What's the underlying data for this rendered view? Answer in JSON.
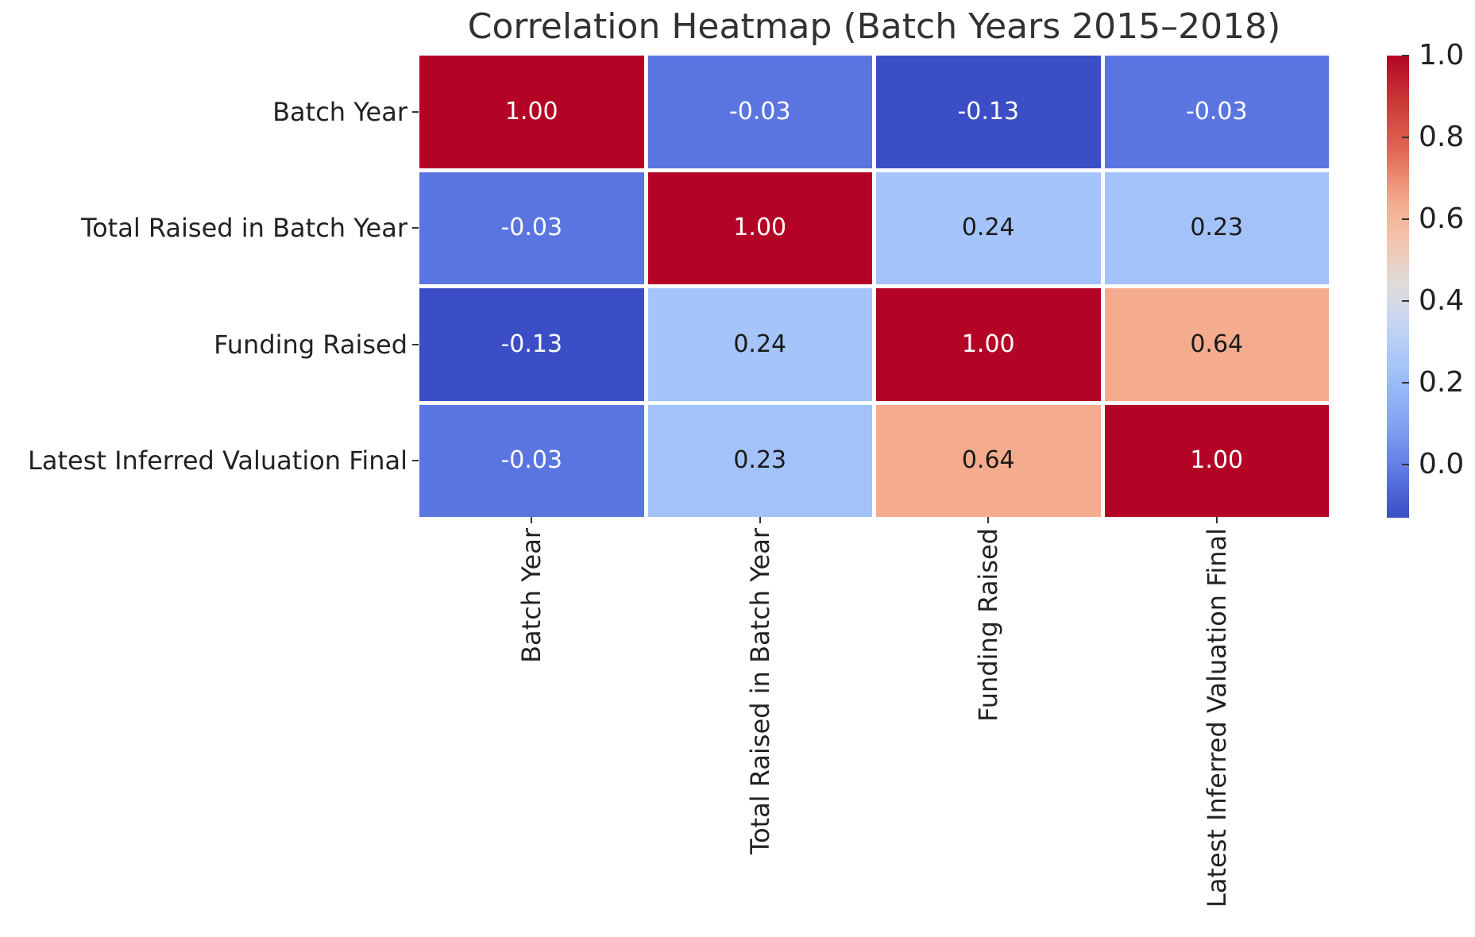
{
  "chart_data": {
    "type": "heatmap",
    "title": "Correlation Heatmap (Batch Years 2015–2018)",
    "categories": [
      "Batch Year",
      "Total Raised in Batch Year",
      "Funding Raised",
      "Latest Inferred Valuation Final"
    ],
    "matrix": [
      [
        1.0,
        -0.03,
        -0.13,
        -0.03
      ],
      [
        -0.03,
        1.0,
        0.24,
        0.23
      ],
      [
        -0.13,
        0.24,
        1.0,
        0.64
      ],
      [
        -0.03,
        0.23,
        0.64,
        1.0
      ]
    ],
    "value_decimals": 2,
    "colormap": "coolwarm",
    "vmin": -0.13,
    "vmax": 1.0,
    "grid_gap_color": "#ffffff",
    "cell_colors": [
      [
        "#b40426",
        "#5a75e0",
        "#3b4ec5",
        "#5a75e0"
      ],
      [
        "#5a75e0",
        "#b40426",
        "#a4c4fa",
        "#a2c2f9"
      ],
      [
        "#3b4ec5",
        "#a4c4fa",
        "#b40426",
        "#f5ac8e"
      ],
      [
        "#5a75e0",
        "#a2c2f9",
        "#f5ac8e",
        "#b40426"
      ]
    ],
    "cell_text_colors": [
      [
        "#ffffff",
        "#ffffff",
        "#ffffff",
        "#ffffff"
      ],
      [
        "#ffffff",
        "#ffffff",
        "#1a1a1a",
        "#1a1a1a"
      ],
      [
        "#ffffff",
        "#1a1a1a",
        "#ffffff",
        "#1a1a1a"
      ],
      [
        "#ffffff",
        "#1a1a1a",
        "#1a1a1a",
        "#ffffff"
      ]
    ],
    "colorbar": {
      "tick_labels": [
        "1.0",
        "0.8",
        "0.6",
        "0.4",
        "0.2",
        "0.0"
      ],
      "tick_values": [
        1.0,
        0.8,
        0.6,
        0.4,
        0.2,
        0.0
      ],
      "gradient_stops": [
        {
          "pos": 0,
          "color": "#b40426"
        },
        {
          "pos": 10,
          "color": "#c93a35"
        },
        {
          "pos": 20,
          "color": "#e06552"
        },
        {
          "pos": 32,
          "color": "#f5ac8e"
        },
        {
          "pos": 40,
          "color": "#f3c4ad"
        },
        {
          "pos": 50,
          "color": "#dddcdc"
        },
        {
          "pos": 57,
          "color": "#c9d6f2"
        },
        {
          "pos": 68,
          "color": "#a2c2f9"
        },
        {
          "pos": 80,
          "color": "#82a3f2"
        },
        {
          "pos": 91,
          "color": "#5a75e0"
        },
        {
          "pos": 100,
          "color": "#3b4ec5"
        }
      ]
    },
    "colors": {
      "background": "#ffffff",
      "title_text": "#323232",
      "axis_text": "#222222",
      "tick_mark": "#333333"
    }
  }
}
